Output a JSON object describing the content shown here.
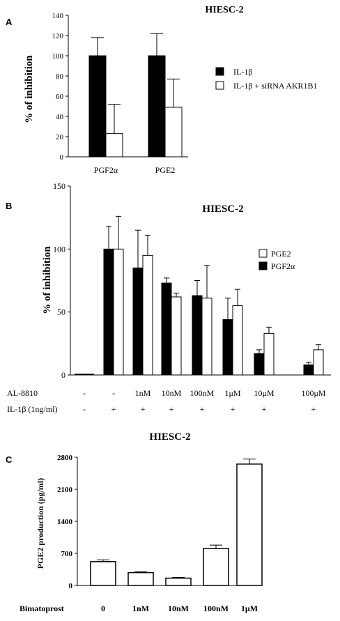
{
  "chart_data": [
    {
      "panel": "A",
      "type": "bar",
      "title": "HIESC-2",
      "ylabel": "% of inhibition",
      "ylim": [
        0,
        140
      ],
      "yticks": [
        "0",
        "20",
        "40",
        "60",
        "80",
        "100",
        "120",
        "140"
      ],
      "categories": [
        "PGF2α",
        "PGE2"
      ],
      "series": [
        {
          "name": "IL-1β",
          "color": "#000000",
          "values": [
            100,
            100
          ],
          "errors": [
            18,
            22
          ]
        },
        {
          "name": "IL-1β + siRNA AKR1B1",
          "color": "#ffffff",
          "values": [
            23,
            49
          ],
          "errors": [
            29,
            28
          ]
        }
      ],
      "legend_position": "right"
    },
    {
      "panel": "B",
      "type": "bar",
      "title": "HIESC-2",
      "ylabel": "% of inhibition",
      "ylim": [
        0,
        150
      ],
      "yticks": [
        "0",
        "50",
        "100",
        "150"
      ],
      "categories": [
        "",
        "",
        "1nM",
        "10nM",
        "100nM",
        "1μM",
        "10μM",
        "100μM"
      ],
      "row_labels": [
        "AL-8810",
        "IL-1β (1ng/ml)"
      ],
      "row1": [
        "-",
        "-",
        "1nM",
        "10nM",
        "100nM",
        "1μM",
        "10μM",
        "100μM"
      ],
      "row2": [
        "-",
        "+",
        "+",
        "+",
        "+",
        "+",
        "+",
        "+"
      ],
      "series": [
        {
          "name": "PGF2α",
          "color": "#000000",
          "values": [
            0,
            100,
            85,
            73,
            63,
            44,
            17,
            8
          ],
          "errors": [
            0,
            18,
            30,
            4,
            12,
            17,
            3,
            2
          ]
        },
        {
          "name": "PGE2",
          "color": "#ffffff",
          "values": [
            0,
            100,
            95,
            62,
            61,
            55,
            33,
            20
          ],
          "errors": [
            0,
            26,
            16,
            3,
            26,
            13,
            5,
            4
          ]
        }
      ],
      "legend_position": "right"
    },
    {
      "panel": "C",
      "type": "bar",
      "title": "HIESC-2",
      "ylabel": "PGE2 production (pg/ml)",
      "ylim": [
        0,
        2800
      ],
      "yticks": [
        "0",
        "700",
        "1400",
        "2100",
        "2800"
      ],
      "xlabel": "Bimatoprost",
      "categories": [
        "0",
        "1nM",
        "10nM",
        "100nM",
        "1μM"
      ],
      "values": [
        520,
        280,
        160,
        810,
        2650
      ],
      "errors": [
        40,
        20,
        15,
        70,
        110
      ],
      "bar_color": "#ffffff"
    }
  ]
}
